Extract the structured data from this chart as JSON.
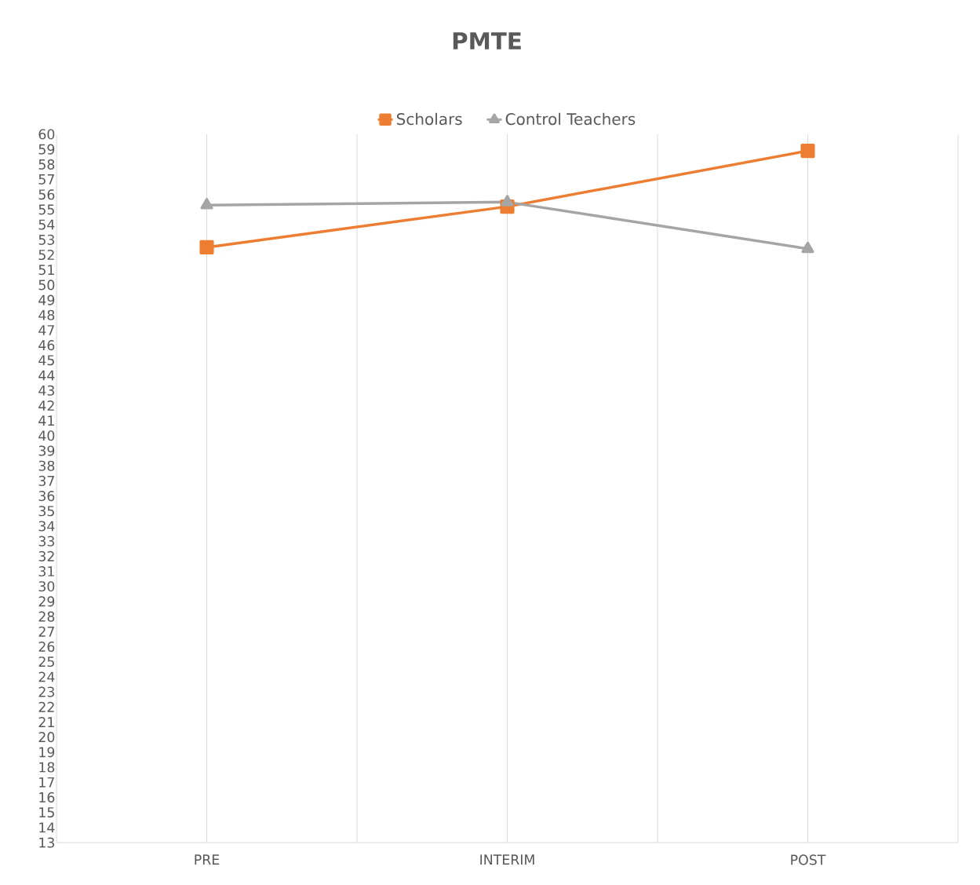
{
  "chart_data": {
    "type": "line",
    "title": "PMTE",
    "categories": [
      "PRE",
      "INTERIM",
      "POST"
    ],
    "series": [
      {
        "name": "Scholars",
        "color": "#ed7d31",
        "marker": "square",
        "values": [
          52.5,
          55.2,
          58.9
        ]
      },
      {
        "name": "Control Teachers",
        "color": "#a5a5a5",
        "marker": "triangle",
        "values": [
          55.3,
          55.5,
          52.4
        ]
      }
    ],
    "ylim": [
      13,
      60
    ],
    "yticks": [
      13,
      14,
      15,
      16,
      17,
      18,
      19,
      20,
      21,
      22,
      23,
      24,
      25,
      26,
      27,
      28,
      29,
      30,
      31,
      32,
      33,
      34,
      35,
      36,
      37,
      38,
      39,
      40,
      41,
      42,
      43,
      44,
      45,
      46,
      47,
      48,
      49,
      50,
      51,
      52,
      53,
      54,
      55,
      56,
      57,
      58,
      59,
      60
    ],
    "grid": "x",
    "legend": "top",
    "line_style": "solid"
  }
}
